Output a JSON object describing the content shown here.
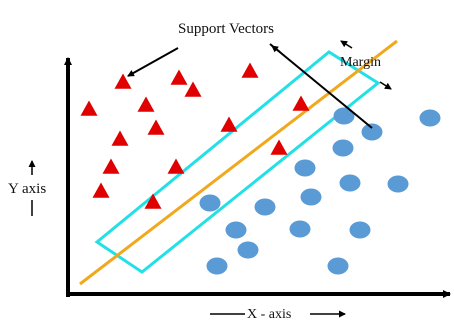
{
  "labels": {
    "support_vectors": "Support Vectors",
    "margin": "Margin",
    "y_axis": "Y axis",
    "x_axis": "X - axis"
  },
  "colors": {
    "triangle": "#e00000",
    "circle": "#5b9bd5",
    "hyperplane": "#f0a81c",
    "margin_box": "#22e0e6",
    "axis": "#000000"
  },
  "triangles": [
    {
      "name": "class-a-point-1"
    },
    {
      "name": "class-a-point-2"
    },
    {
      "name": "class-a-point-3"
    },
    {
      "name": "class-a-point-4"
    },
    {
      "name": "class-a-point-5"
    },
    {
      "name": "class-a-point-6"
    },
    {
      "name": "class-a-point-7"
    },
    {
      "name": "class-a-point-8"
    },
    {
      "name": "class-a-point-9"
    },
    {
      "name": "class-a-point-10"
    },
    {
      "name": "class-a-point-11"
    },
    {
      "name": "class-a-point-12"
    },
    {
      "name": "class-a-point-13"
    },
    {
      "name": "class-a-point-14"
    },
    {
      "name": "class-a-support-vector"
    }
  ],
  "circles": [
    {
      "name": "class-b-point-1"
    },
    {
      "name": "class-b-point-2"
    },
    {
      "name": "class-b-point-3"
    },
    {
      "name": "class-b-point-4"
    },
    {
      "name": "class-b-point-5"
    },
    {
      "name": "class-b-point-6"
    },
    {
      "name": "class-b-point-7"
    },
    {
      "name": "class-b-point-8"
    },
    {
      "name": "class-b-point-9"
    },
    {
      "name": "class-b-point-10"
    },
    {
      "name": "class-b-point-11"
    },
    {
      "name": "class-b-point-12"
    },
    {
      "name": "class-b-point-13"
    },
    {
      "name": "class-b-point-14"
    },
    {
      "name": "class-b-point-15"
    },
    {
      "name": "class-b-point-16"
    }
  ]
}
